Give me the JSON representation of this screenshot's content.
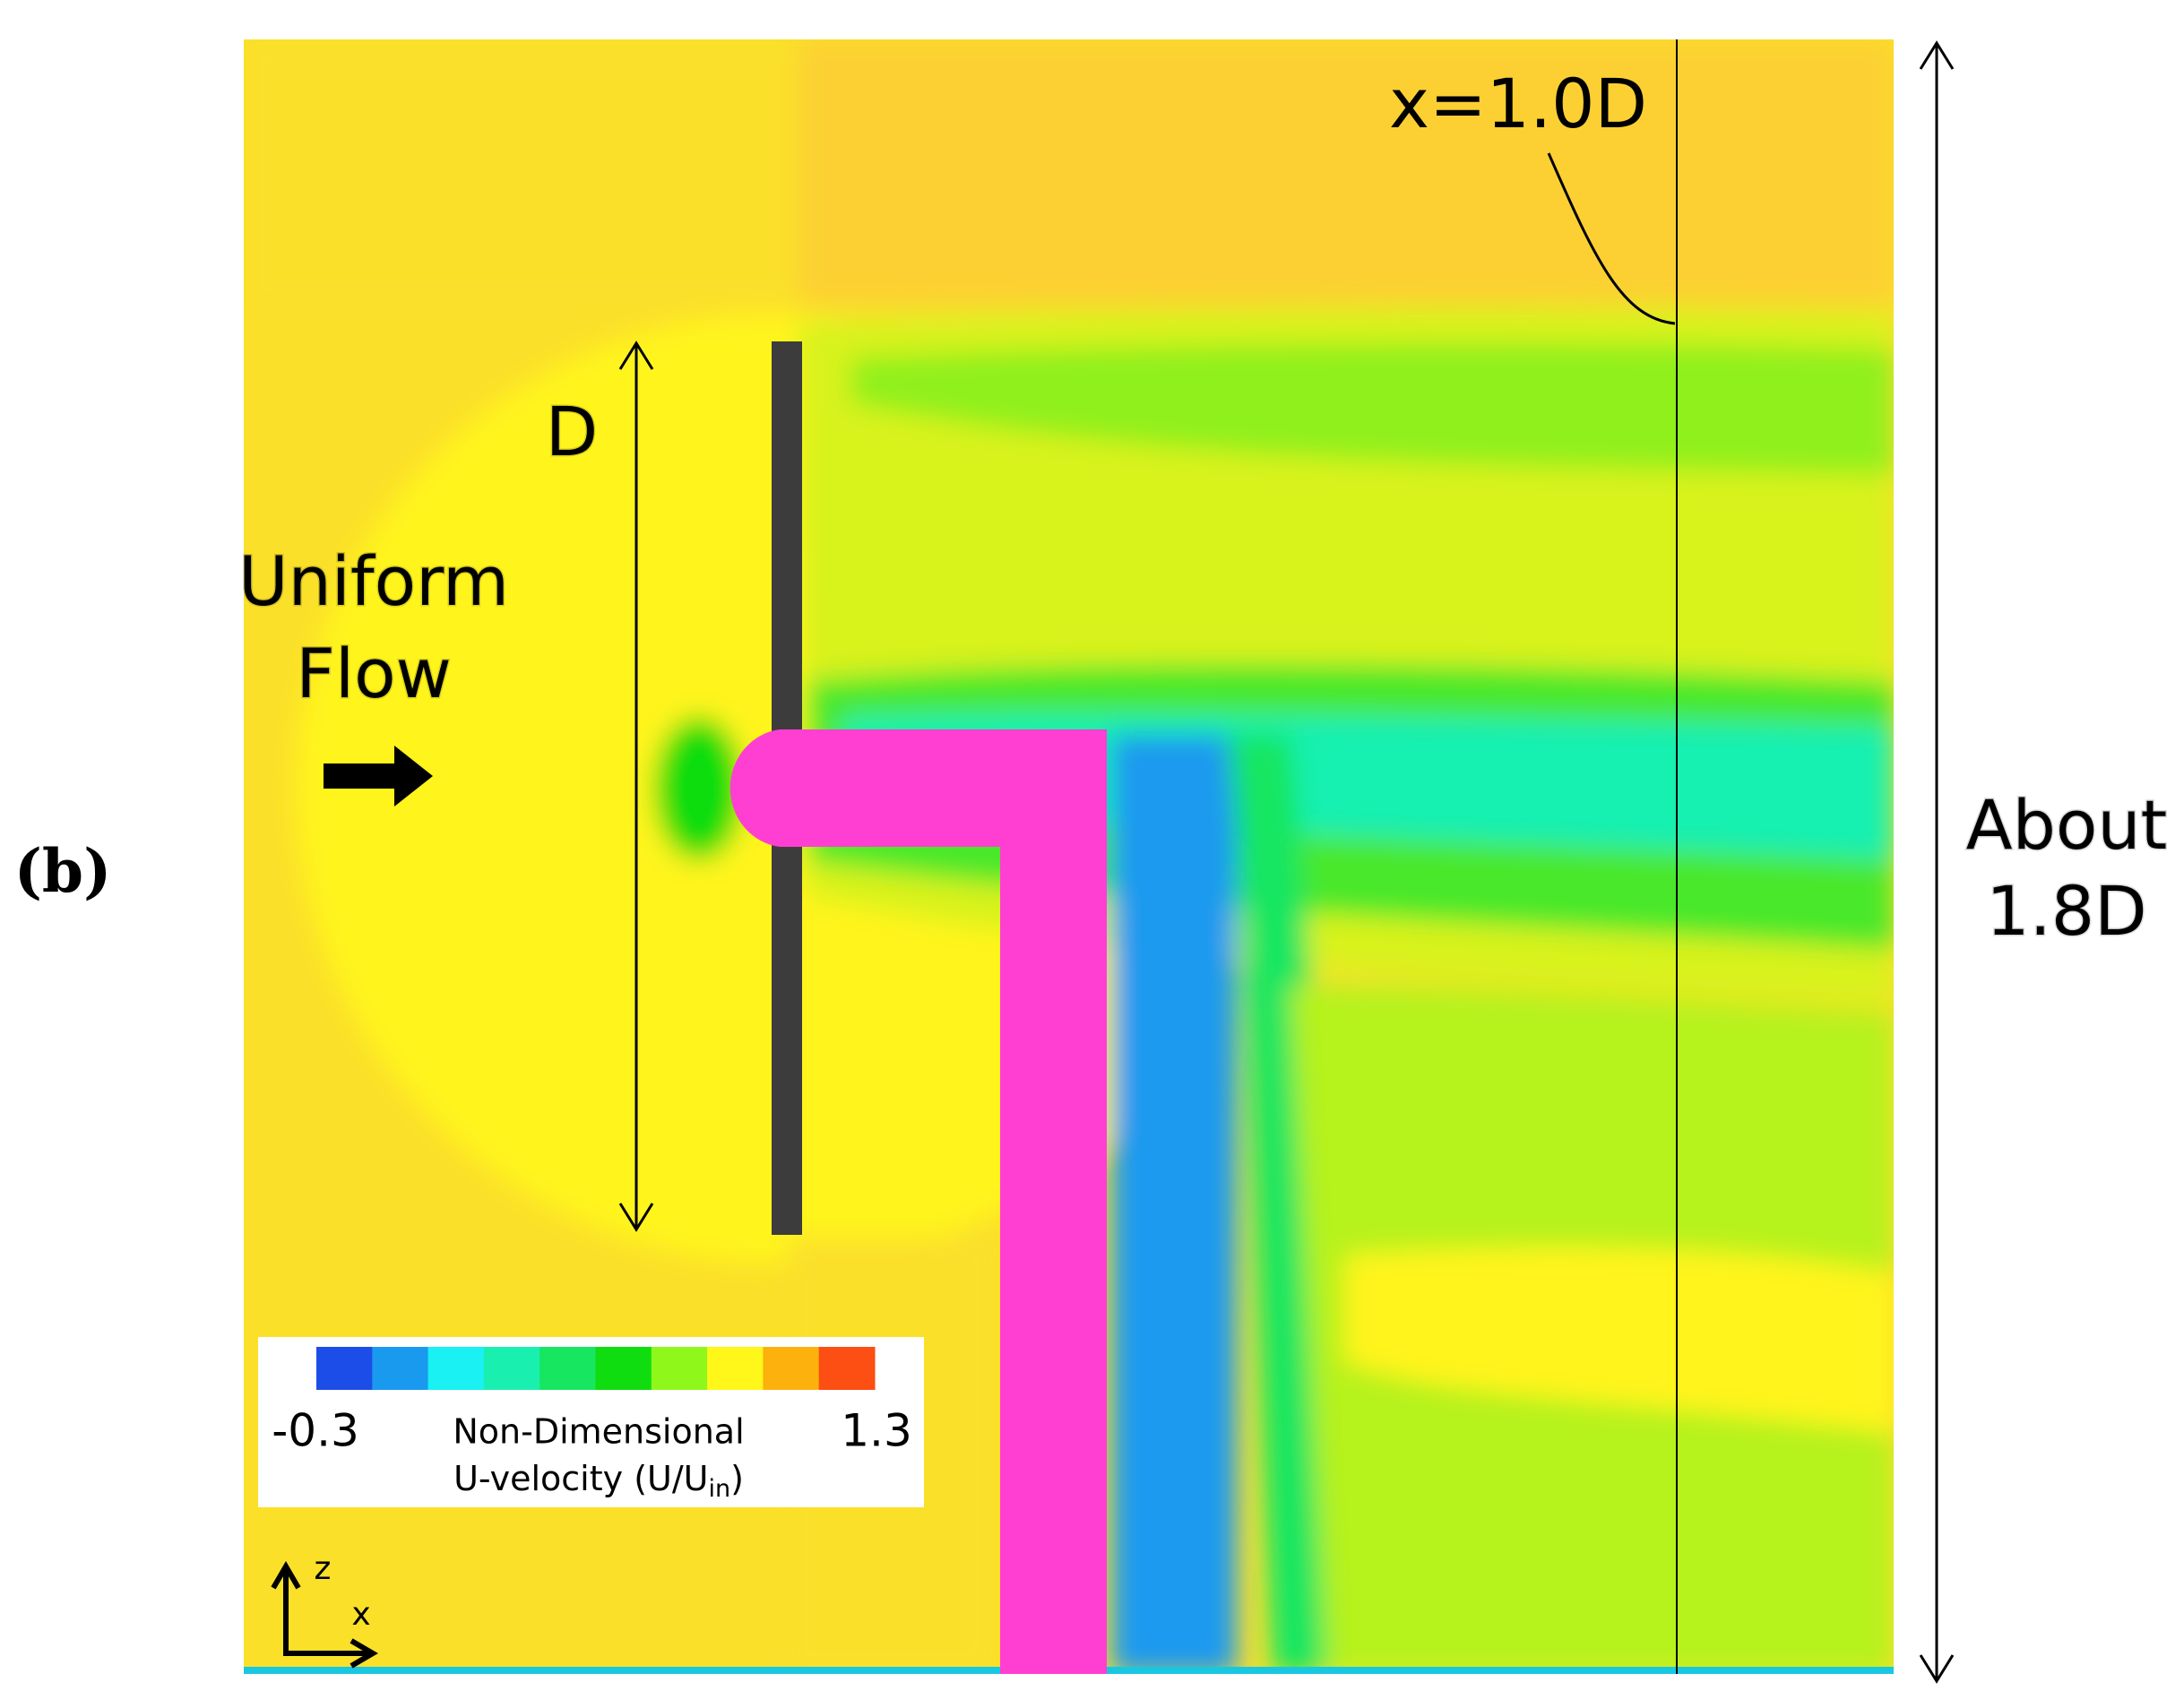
{
  "figure": {
    "panel_label": "(b)",
    "probe_label": "x=1.0D",
    "diameter_label": "D",
    "inflow_label": [
      "Uniform",
      "Flow"
    ],
    "height_label": [
      "About",
      "1.8D"
    ],
    "legend": {
      "min": "-0.3",
      "max": "1.3",
      "title": "Non-Dimensional",
      "subtitle": "U-velocity (U/U",
      "subscript": "in",
      "subtitle_end": ")",
      "colors": [
        "#1d4de8",
        "#1a9aef",
        "#19f1f2",
        "#19f0b0",
        "#16e660",
        "#10dd10",
        "#90f71a",
        "#fff71a",
        "#fcb10c",
        "#fd4e14"
      ]
    },
    "axes_glyph": {
      "vertical": "z",
      "horizontal": "x"
    }
  }
}
